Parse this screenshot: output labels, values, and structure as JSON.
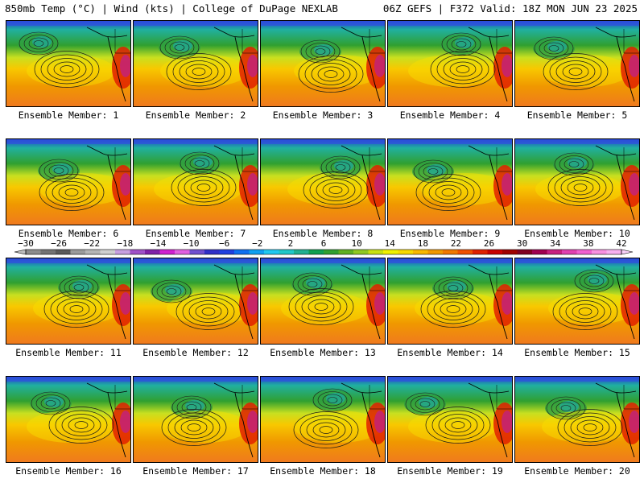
{
  "header": {
    "left": "850mb Temp (°C) | Wind (kts) | College of DuPage NEXLAB",
    "right": "06Z GEFS | F372 Valid: 18Z MON JUN 23 2025"
  },
  "panels": [
    {
      "label": "Ensemble Member: 1"
    },
    {
      "label": "Ensemble Member: 2"
    },
    {
      "label": "Ensemble Member: 3"
    },
    {
      "label": "Ensemble Member: 4"
    },
    {
      "label": "Ensemble Member: 5"
    },
    {
      "label": "Ensemble Member: 6"
    },
    {
      "label": "Ensemble Member: 7"
    },
    {
      "label": "Ensemble Member: 8"
    },
    {
      "label": "Ensemble Member: 9"
    },
    {
      "label": "Ensemble Member: 10"
    },
    {
      "label": "Ensemble Member: 11"
    },
    {
      "label": "Ensemble Member: 12"
    },
    {
      "label": "Ensemble Member: 13"
    },
    {
      "label": "Ensemble Member: 14"
    },
    {
      "label": "Ensemble Member: 15"
    },
    {
      "label": "Ensemble Member: 16"
    },
    {
      "label": "Ensemble Member: 17"
    },
    {
      "label": "Ensemble Member: 18"
    },
    {
      "label": "Ensemble Member: 19"
    },
    {
      "label": "Ensemble Member: 20"
    }
  ],
  "colorbar": {
    "tick_labels": [
      "−30",
      "−26",
      "−22",
      "−18",
      "−14",
      "−10",
      "−6",
      "−2",
      "2",
      "6",
      "10",
      "14",
      "18",
      "22",
      "26",
      "30",
      "34",
      "38",
      "42"
    ],
    "colors": [
      "#8c8c8c",
      "#737373",
      "#5a5a5a",
      "#9b9b9b",
      "#b5b5b5",
      "#d0d0d0",
      "#c8a0e0",
      "#a050c8",
      "#8020a8",
      "#d020d0",
      "#e060e0",
      "#7050d0",
      "#3030c8",
      "#2040e0",
      "#1070f0",
      "#10a0f0",
      "#20c8f0",
      "#20c8c8",
      "#20b090",
      "#10a050",
      "#30a030",
      "#60b020",
      "#90c820",
      "#c8e010",
      "#f0f000",
      "#f8d800",
      "#f8b800",
      "#f09800",
      "#f07800",
      "#f05000",
      "#e02000",
      "#c80000",
      "#a00000",
      "#800020",
      "#a00050",
      "#c82080",
      "#e040b0",
      "#f060d0",
      "#f890e0",
      "#f8b0f0"
    ]
  }
}
